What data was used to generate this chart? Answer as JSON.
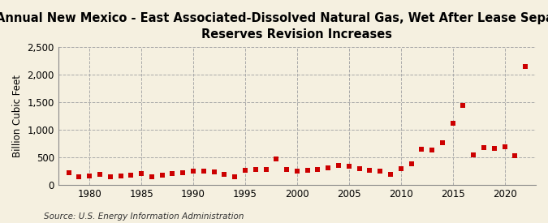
{
  "title": "Annual New Mexico - East Associated-Dissolved Natural Gas, Wet After Lease Separation,\nReserves Revision Increases",
  "ylabel": "Billion Cubic Feet",
  "source": "Source: U.S. Energy Information Administration",
  "background_color": "#f5f0e0",
  "plot_bg_color": "#f5f0e0",
  "marker_color": "#cc0000",
  "years": [
    1978,
    1979,
    1980,
    1981,
    1982,
    1983,
    1984,
    1985,
    1986,
    1987,
    1988,
    1989,
    1990,
    1991,
    1992,
    1993,
    1994,
    1995,
    1996,
    1997,
    1998,
    1999,
    2000,
    2001,
    2002,
    2003,
    2004,
    2005,
    2006,
    2007,
    2008,
    2009,
    2010,
    2011,
    2012,
    2013,
    2014,
    2015,
    2016,
    2017,
    2018,
    2019,
    2020,
    2021,
    2022
  ],
  "values": [
    220,
    155,
    170,
    200,
    150,
    165,
    185,
    205,
    155,
    175,
    205,
    230,
    255,
    260,
    240,
    200,
    150,
    270,
    280,
    280,
    480,
    290,
    260,
    270,
    290,
    310,
    355,
    340,
    295,
    275,
    260,
    195,
    305,
    380,
    645,
    635,
    775,
    1120,
    1440,
    555,
    680,
    665,
    690,
    530,
    2140
  ],
  "xlim": [
    1977,
    2023
  ],
  "ylim": [
    0,
    2500
  ],
  "yticks": [
    0,
    500,
    1000,
    1500,
    2000,
    2500
  ],
  "xticks": [
    1980,
    1985,
    1990,
    1995,
    2000,
    2005,
    2010,
    2015,
    2020
  ],
  "title_fontsize": 10.5,
  "label_fontsize": 8.5,
  "tick_fontsize": 8.5,
  "source_fontsize": 7.5
}
